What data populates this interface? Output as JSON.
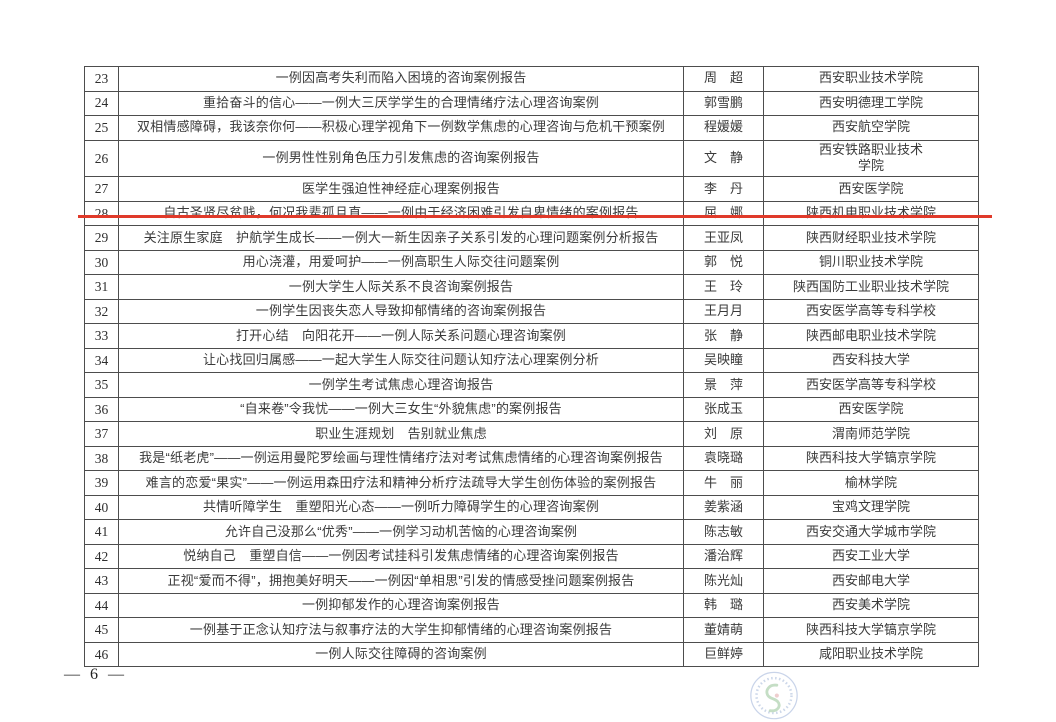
{
  "footer": {
    "page_label": "— 6 —"
  },
  "highlight": {
    "color": "#e03a2a",
    "underlined_row_number": "28"
  },
  "seal_colors": {
    "ring": "#a6b8dc",
    "text_ring": "#8ea6cf",
    "emblem_green": "#8fbf8f",
    "emblem_red": "#d98c8c"
  },
  "table": {
    "columns": [
      "num",
      "title",
      "author",
      "institution"
    ],
    "rows": [
      {
        "num": "23",
        "title": "一例因高考失利而陷入困境的咨询案例报告",
        "author": "周　超",
        "institution": "西安职业技术学院"
      },
      {
        "num": "24",
        "title": "重拾奋斗的信心——一例大三厌学学生的合理情绪疗法心理咨询案例",
        "author": "郭雪鹏",
        "institution": "西安明德理工学院"
      },
      {
        "num": "25",
        "title": "双相情感障碍，我该奈你何——积极心理学视角下一例数学焦虑的心理咨询与危机干预案例",
        "author": "程媛媛",
        "institution": "西安航空学院"
      },
      {
        "num": "26",
        "title": "一例男性性别角色压力引发焦虑的咨询案例报告",
        "author": "文　静",
        "institution": "西安铁路职业技术\n学院"
      },
      {
        "num": "27",
        "title": "医学生强迫性神经症心理案例报告",
        "author": "李　丹",
        "institution": "西安医学院"
      },
      {
        "num": "28",
        "title": "自古圣贤尽贫贱，何况我辈孤且直——一例由于经济困难引发自卑情绪的案例报告",
        "author": "屈　娜",
        "institution": "陕西机电职业技术学院"
      },
      {
        "num": "29",
        "title": "关注原生家庭　护航学生成长——一例大一新生因亲子关系引发的心理问题案例分析报告",
        "author": "王亚凤",
        "institution": "陕西财经职业技术学院"
      },
      {
        "num": "30",
        "title": "用心浇灌，用爱呵护——一例高职生人际交往问题案例",
        "author": "郭　悦",
        "institution": "铜川职业技术学院"
      },
      {
        "num": "31",
        "title": "一例大学生人际关系不良咨询案例报告",
        "author": "王　玲",
        "institution": "陕西国防工业职业技术学院"
      },
      {
        "num": "32",
        "title": "一例学生因丧失恋人导致抑郁情绪的咨询案例报告",
        "author": "王月月",
        "institution": "西安医学高等专科学校"
      },
      {
        "num": "33",
        "title": "打开心结　向阳花开——一例人际关系问题心理咨询案例",
        "author": "张　静",
        "institution": "陕西邮电职业技术学院"
      },
      {
        "num": "34",
        "title": "让心找回归属感——一起大学生人际交往问题认知疗法心理案例分析",
        "author": "吴映瞳",
        "institution": "西安科技大学"
      },
      {
        "num": "35",
        "title": "一例学生考试焦虑心理咨询报告",
        "author": "景　萍",
        "institution": "西安医学高等专科学校"
      },
      {
        "num": "36",
        "title": "“自来卷”令我忧——一例大三女生“外貌焦虑”的案例报告",
        "author": "张成玉",
        "institution": "西安医学院"
      },
      {
        "num": "37",
        "title": "职业生涯规划　告别就业焦虑",
        "author": "刘　原",
        "institution": "渭南师范学院"
      },
      {
        "num": "38",
        "title": "我是“纸老虎”——一例运用曼陀罗绘画与理性情绪疗法对考试焦虑情绪的心理咨询案例报告",
        "author": "袁晓璐",
        "institution": "陕西科技大学镐京学院"
      },
      {
        "num": "39",
        "title": "难言的恋爱“果实”——一例运用森田疗法和精神分析疗法疏导大学生创伤体验的案例报告",
        "author": "牛　丽",
        "institution": "榆林学院"
      },
      {
        "num": "40",
        "title": "共情听障学生　重塑阳光心态——一例听力障碍学生的心理咨询案例",
        "author": "姜紫涵",
        "institution": "宝鸡文理学院"
      },
      {
        "num": "41",
        "title": "允许自己没那么“优秀”——一例学习动机苦恼的心理咨询案例",
        "author": "陈志敏",
        "institution": "西安交通大学城市学院"
      },
      {
        "num": "42",
        "title": "悦纳自己　重塑自信——一例因考试挂科引发焦虑情绪的心理咨询案例报告",
        "author": "潘治辉",
        "institution": "西安工业大学"
      },
      {
        "num": "43",
        "title": "正视“爱而不得”，拥抱美好明天——一例因“单相思”引发的情感受挫问题案例报告",
        "author": "陈光灿",
        "institution": "西安邮电大学"
      },
      {
        "num": "44",
        "title": "一例抑郁发作的心理咨询案例报告",
        "author": "韩　璐",
        "institution": "西安美术学院"
      },
      {
        "num": "45",
        "title": "一例基于正念认知疗法与叙事疗法的大学生抑郁情绪的心理咨询案例报告",
        "author": "董婧萌",
        "institution": "陕西科技大学镐京学院"
      },
      {
        "num": "46",
        "title": "一例人际交往障碍的咨询案例",
        "author": "巨鲜婷",
        "institution": "咸阳职业技术学院"
      }
    ]
  }
}
